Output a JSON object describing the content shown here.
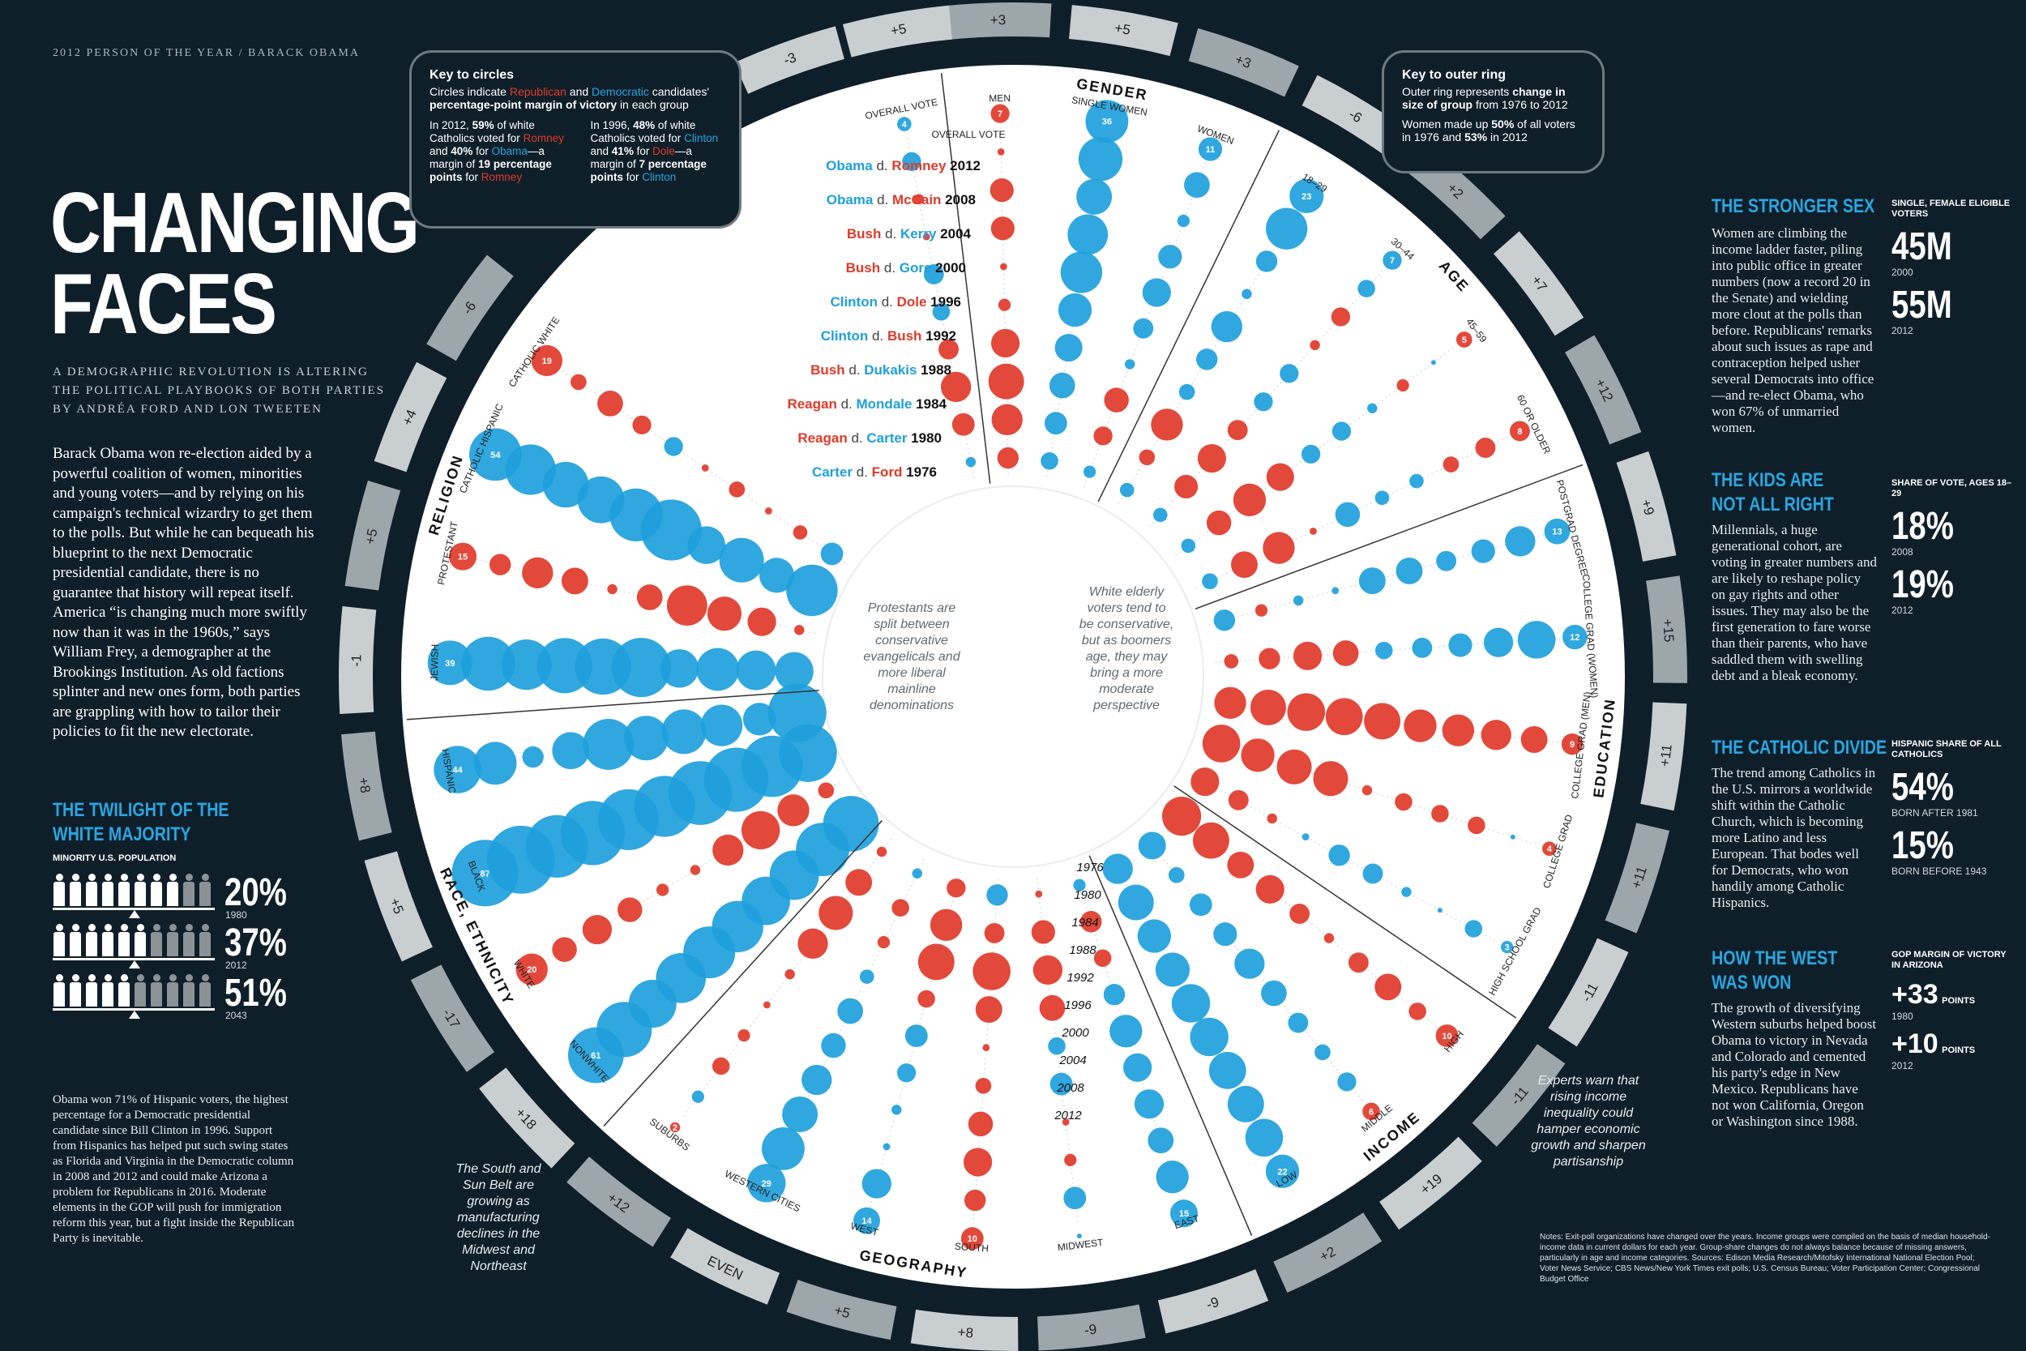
{
  "header": {
    "kicker": "2012 PERSON OF THE YEAR / BARACK OBAMA"
  },
  "title": {
    "line1": "CHANGING",
    "line2": "FACES"
  },
  "subtitle": {
    "line1": "A DEMOGRAPHIC REVOLUTION IS ALTERING",
    "line2": "THE POLITICAL PLAYBOOKS OF BOTH PARTIES",
    "line3": "BY ANDRÉA FORD AND LON TWEETEN"
  },
  "intro": "Barack Obama won re-election aided by a powerful coalition of women, minorities and young voters—and by relying on his campaign's technical wizardry to get them to the polls. But while he can bequeath his blueprint to the next Democratic presidential candidate, there is no guarantee that history will repeat itself. America “is changing much more swiftly now than it was in the 1960s,” says William Frey, a demographer at the Brookings Institution. As old factions splinter and new ones form, both parties are grappling with how to tailor their policies to fit the new electorate.",
  "twilight": {
    "title1": "THE TWILIGHT OF THE",
    "title2": "WHITE MAJORITY",
    "label": "MINORITY U.S. POPULATION",
    "rows": [
      {
        "value": "20%",
        "year": "1980",
        "minority": 2
      },
      {
        "value": "37%",
        "year": "2012",
        "minority": 4
      },
      {
        "value": "51%",
        "year": "2043",
        "minority": 5
      }
    ],
    "body": "Obama won 71% of Hispanic voters, the highest percentage for a Democratic presidential candidate since Bill Clinton in 1996. Support from Hispanics has helped put such swing states as Florida and Virginia in the Democratic column in 2008 and 2012 and could make Arizona a problem for Republicans in 2016. Moderate elements in the GOP will push for immigration reform this year, but a fight inside the Republican Party is inevitable."
  },
  "key_circles": {
    "title": "Key to circles",
    "line1": "Circles indicate",
    "rep": "Republican",
    "and": "and",
    "dem": "Democratic",
    "line1b": "candidates'",
    "line2": "percentage-point margin of victory",
    "line2b": "in each group",
    "col1": {
      "a": "In 2012,",
      "b": "59%",
      "c": "of white Catholics voted for",
      "d": "Romney",
      "e": "and",
      "f": "40%",
      "g": "for",
      "h": "Obama",
      "i": "—a margin of",
      "j": "19 percentage points",
      "k": "for",
      "l": "Romney"
    },
    "col2": {
      "a": "In 1996,",
      "b": "48%",
      "c": "of white Catholics voted for",
      "d": "Clinton",
      "e": "and",
      "f": "41%",
      "g": "for",
      "h": "Dole",
      "i": "—a margin of",
      "j": "7 percentage points",
      "k": "for",
      "l": "Clinton"
    }
  },
  "key_ring": {
    "title": "Key to outer ring",
    "line1": "Outer ring represents",
    "bold1": "change in size of group",
    "line1b": "from 1976 to 2012",
    "line2": "Women made up",
    "bold2": "50%",
    "line2b": "of all voters in 1976 and",
    "bold3": "53%",
    "line2c": "in 2012"
  },
  "elections": [
    {
      "winner": "Obama",
      "loser": "Romney",
      "year": "2012",
      "party": "D"
    },
    {
      "winner": "Obama",
      "loser": "McCain",
      "year": "2008",
      "party": "D"
    },
    {
      "winner": "Bush",
      "loser": "Kerry",
      "year": "2004",
      "party": "R"
    },
    {
      "winner": "Bush",
      "loser": "Gore",
      "year": "2000",
      "party": "R"
    },
    {
      "winner": "Clinton",
      "loser": "Dole",
      "year": "1996",
      "party": "D"
    },
    {
      "winner": "Clinton",
      "loser": "Bush",
      "year": "1992",
      "party": "D"
    },
    {
      "winner": "Bush",
      "loser": "Dukakis",
      "year": "1988",
      "party": "R"
    },
    {
      "winner": "Reagan",
      "loser": "Mondale",
      "year": "1984",
      "party": "R"
    },
    {
      "winner": "Reagan",
      "loser": "Carter",
      "year": "1980",
      "party": "R"
    },
    {
      "winner": "Carter",
      "loser": "Ford",
      "year": "1976",
      "party": "D"
    }
  ],
  "election_d": "d.",
  "east_years": [
    "1976",
    "1980",
    "1984",
    "1988",
    "1992",
    "1996",
    "2000",
    "2004",
    "2008",
    "2012"
  ],
  "even_label": "Even",
  "categories": [
    {
      "label": "GENDER",
      "groups": [
        {
          "name": "MEN",
          "ring": "+3",
          "margins": [
            -7,
            -1,
            -11,
            -11,
            -1,
            -3,
            -16,
            -25,
            -19,
            -9
          ]
        },
        {
          "name": "SINGLE WOMEN",
          "ring": "+5",
          "margins": [
            36,
            38,
            25,
            32,
            34,
            22,
            15,
            13,
            10,
            6
          ]
        },
        {
          "name": "WOMEN",
          "ring": "+3",
          "margins": [
            11,
            13,
            3,
            11,
            16,
            8,
            2,
            -12,
            -7,
            3
          ]
        }
      ]
    },
    {
      "label": "AGE",
      "groups": [
        {
          "name": "18–29",
          "ring": "-6",
          "margins": [
            23,
            34,
            9,
            2,
            19,
            9,
            5,
            -20,
            -5,
            4
          ]
        },
        {
          "name": "30–44",
          "ring": "+2",
          "margins": [
            7,
            6,
            -7,
            -2,
            7,
            7,
            -8,
            -16,
            -11,
            4
          ]
        },
        {
          "name": "45–59",
          "ring": "+7",
          "margins": [
            -5,
            0,
            -3,
            2,
            7,
            7,
            -15,
            -21,
            -12,
            4
          ]
        },
        {
          "name": "60 OR OLDER",
          "ring": "+12",
          "margins": [
            -8,
            -8,
            -5,
            4,
            4,
            12,
            -1,
            -20,
            -14,
            5
          ]
        }
      ]
    },
    {
      "label": "EDUCATION",
      "groups": [
        {
          "name": "POSTGRAD DEGREE",
          "ring": "+9",
          "margins": [
            13,
            18,
            11,
            8,
            14,
            14,
            1,
            2,
            -3,
            9
          ]
        },
        {
          "name": "COLLEGE GRAD (WOMEN)",
          "ring": "+15",
          "margins": [
            12,
            28,
            17,
            11,
            8,
            6,
            -13,
            -16,
            -9,
            -4
          ]
        },
        {
          "name": "COLLEGE GRAD (MEN)",
          "ring": "+11",
          "margins": [
            -9,
            -14,
            -18,
            -20,
            -21,
            -26,
            -27,
            -28,
            -25,
            -20
          ]
        },
        {
          "name": "COLLEGE GRAD",
          "ring": "+11",
          "margins": [
            -4,
            0,
            -6,
            -6,
            -6,
            -2,
            -24,
            -24,
            -22,
            -28
          ]
        },
        {
          "name": "HIGH SCHOOL GRAD",
          "ring": "-11",
          "margins": [
            3,
            6,
            0,
            2,
            8,
            9,
            1,
            -2,
            -8,
            -16
          ]
        }
      ]
    },
    {
      "label": "INCOME",
      "groups": [
        {
          "name": "HIGH",
          "ring": "-11",
          "margins": [
            -10,
            -6,
            -14,
            -8,
            -2,
            -8,
            -16,
            -14,
            -26,
            -30
          ]
        },
        {
          "name": "MIDDLE",
          "ring": "+19",
          "margins": [
            -6,
            7,
            5,
            8,
            13,
            18,
            11,
            10,
            5,
            15
          ]
        },
        {
          "name": "LOW",
          "ring": "+2",
          "margins": [
            22,
            28,
            26,
            27,
            29,
            29,
            23,
            22,
            25,
            18
          ]
        }
      ]
    },
    {
      "label": "GEOGRAPHY",
      "groups": [
        {
          "name": "EAST",
          "ring": "-9",
          "margins": [
            15,
            21,
            13,
            17,
            16,
            21,
            9,
            -6,
            -9,
            3
          ]
        },
        {
          "name": "MIDWEST",
          "ring": "-9",
          "margins": [
            0,
            10,
            -3,
            -1,
            10,
            6,
            -13,
            -17,
            -11,
            -1
          ]
        },
        {
          "name": "SOUTH",
          "ring": "+8",
          "margins": [
            -10,
            -9,
            -16,
            -12,
            -5,
            -1,
            -14,
            -28,
            -8,
            9
          ]
        },
        {
          "name": "WEST",
          "ring": "+5",
          "margins": [
            14,
            17,
            1,
            2,
            7,
            10,
            -6,
            -26,
            -20,
            -7
          ]
        },
        {
          "name": "WESTERN CITIES",
          "ring": "EVEN",
          "margins": [
            29,
            36,
            25,
            18,
            12,
            13,
            4,
            -3,
            -6,
            2
          ]
        },
        {
          "name": "SUBURBS",
          "ring": "+12",
          "margins": [
            -2,
            3,
            -6,
            -3,
            -1,
            -2,
            -18,
            -23,
            -14,
            -2
          ]
        }
      ]
    },
    {
      "label": "RACE, ETHNICITY",
      "groups": [
        {
          "name": "NONWHITE",
          "ring": "+18",
          "margins": [
            61,
            60,
            45,
            49,
            53,
            52,
            46,
            48,
            56,
            61
          ]
        },
        {
          "name": "WHITE",
          "ring": "-17",
          "margins": [
            -20,
            -12,
            -17,
            -12,
            -3,
            -2,
            -19,
            -29,
            -20,
            -5
          ]
        },
        {
          "name": "BLACK",
          "ring": "+5",
          "margins": [
            87,
            91,
            77,
            81,
            73,
            73,
            80,
            81,
            74,
            66
          ]
        },
        {
          "name": "HISPANIC",
          "ring": "+8",
          "margins": [
            44,
            36,
            9,
            27,
            51,
            39,
            39,
            34,
            21,
            67
          ]
        }
      ]
    },
    {
      "label": "RELIGION",
      "groups": [
        {
          "name": "JEWISH",
          "ring": "-1",
          "margins": [
            39,
            57,
            50,
            60,
            62,
            69,
            29,
            36,
            31,
            29
          ]
        },
        {
          "name": "PROTESTANT",
          "ring": "+5",
          "margins": [
            -15,
            -9,
            -19,
            -14,
            -2,
            -13,
            -32,
            -23,
            -16,
            -2
          ]
        },
        {
          "name": "CATHOLIC HISPANIC",
          "ring": "+4",
          "margins": [
            54,
            50,
            41,
            43,
            55,
            73,
            28,
            39,
            24,
            52
          ]
        },
        {
          "name": "CATHOLIC WHITE",
          "ring": "-6",
          "margins": [
            -19,
            -5,
            -13,
            -7,
            7,
            -1,
            -5,
            -1,
            -4,
            10
          ]
        }
      ]
    }
  ],
  "top_ring_extra": [
    "-3",
    "+5"
  ],
  "callouts": {
    "protestants": "Protestants are split between conservative evangelicals and more liberal mainline denominations",
    "elderly": "White elderly voters tend to be conservative, but as boomers age, they may bring a more moderate perspective",
    "experts": "Experts warn that rising income inequality could hamper economic growth and sharpen partisanship",
    "south": "The South and Sun Belt are growing as manufacturing declines in the Midwest and Northeast"
  },
  "overall_vote": "OVERALL VOTE",
  "right": {
    "s1": {
      "title": "THE STRONGER SEX",
      "body": "Women are climbing the income ladder faster, piling into public office in greater numbers (now a record 20 in the Senate) and wielding more clout at the polls than before. Republicans' remarks about such issues as rape and contraception helped usher several Democrats into office—and re-elect Obama, who won 67% of unmarried women.",
      "stat_label": "SINGLE, FEMALE ELIGIBLE VOTERS",
      "v1": "45M",
      "y1": "2000",
      "v2": "55M",
      "y2": "2012"
    },
    "s2": {
      "title1": "THE KIDS ARE",
      "title2": "NOT ALL RIGHT",
      "body": "Millennials, a huge generational cohort, are voting in greater numbers and are likely to reshape policy on gay rights and other issues. They may also be the first generation to fare worse than their parents, who have saddled them with swelling debt and a bleak economy.",
      "stat_label": "SHARE OF VOTE, AGES 18–29",
      "v1": "18%",
      "y1": "2008",
      "v2": "19%",
      "y2": "2012"
    },
    "s3": {
      "title": "THE CATHOLIC DIVIDE",
      "body": "The trend among Catholics in the U.S. mirrors a worldwide shift within the Catholic Church, which is becoming more Latino and less European. That bodes well for Democrats, who won handily among Catholic Hispanics.",
      "stat_label": "HISPANIC SHARE OF ALL CATHOLICS",
      "v1": "54%",
      "y1": "BORN AFTER 1981",
      "v2": "15%",
      "y2": "BORN BEFORE 1943"
    },
    "s4": {
      "title1": "HOW THE WEST",
      "title2": "WAS WON",
      "body": "The growth of diversifying Western suburbs helped boost Obama to victory in Nevada and Colorado and cemented his party's edge in New Mexico. Republicans have not won California, Oregon or Washington since 1988.",
      "stat_label": "GOP MARGIN OF VICTORY IN ARIZONA",
      "v1": "+33",
      "u1": "POINTS",
      "y1": "1980",
      "v2": "+10",
      "u2": "POINTS",
      "y2": "2012"
    }
  },
  "notes": "Notes: Exit-poll organizations have changed over the years. Income groups were compiled on the basis of median household-income data in current dollars for each year. Group-share changes do not always balance because of missing answers, particularly in age and income categories. Sources: Edison Media Research/Mitofsky International National Election Pool; Voter News Service; CBS News/New York Times exit polls; U.S. Census Bureau; Voter Participation Center; Congressional Budget Office",
  "colors": {
    "rep": "#e03a2a",
    "dem": "#1ea0dc",
    "bg": "#0f1f2a",
    "ring": "#c9ced1"
  }
}
